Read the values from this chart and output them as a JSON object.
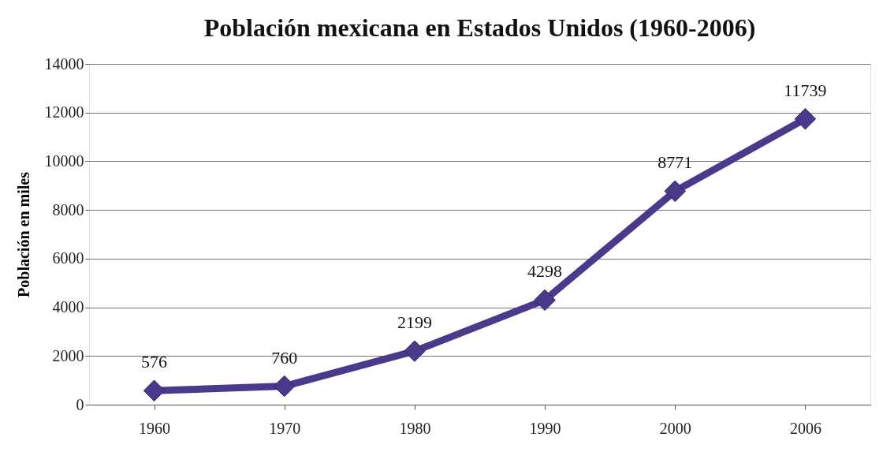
{
  "chart_data": {
    "type": "line",
    "title": "Población mexicana en Estados Unidos (1960-2006)",
    "ylabel": "Población en miles",
    "categories": [
      "1960",
      "1970",
      "1980",
      "1990",
      "2000",
      "2006"
    ],
    "series": [
      {
        "color": "#4b3a8c",
        "values": [
          576,
          760,
          2199,
          4298,
          8771,
          11739
        ]
      }
    ],
    "ylim": [
      0,
      14000
    ],
    "yticks": [
      0,
      2000,
      4000,
      6000,
      8000,
      10000,
      12000,
      14000
    ],
    "grid": "y",
    "marker": "diamond",
    "line_style": "solid",
    "data_labels": true
  }
}
